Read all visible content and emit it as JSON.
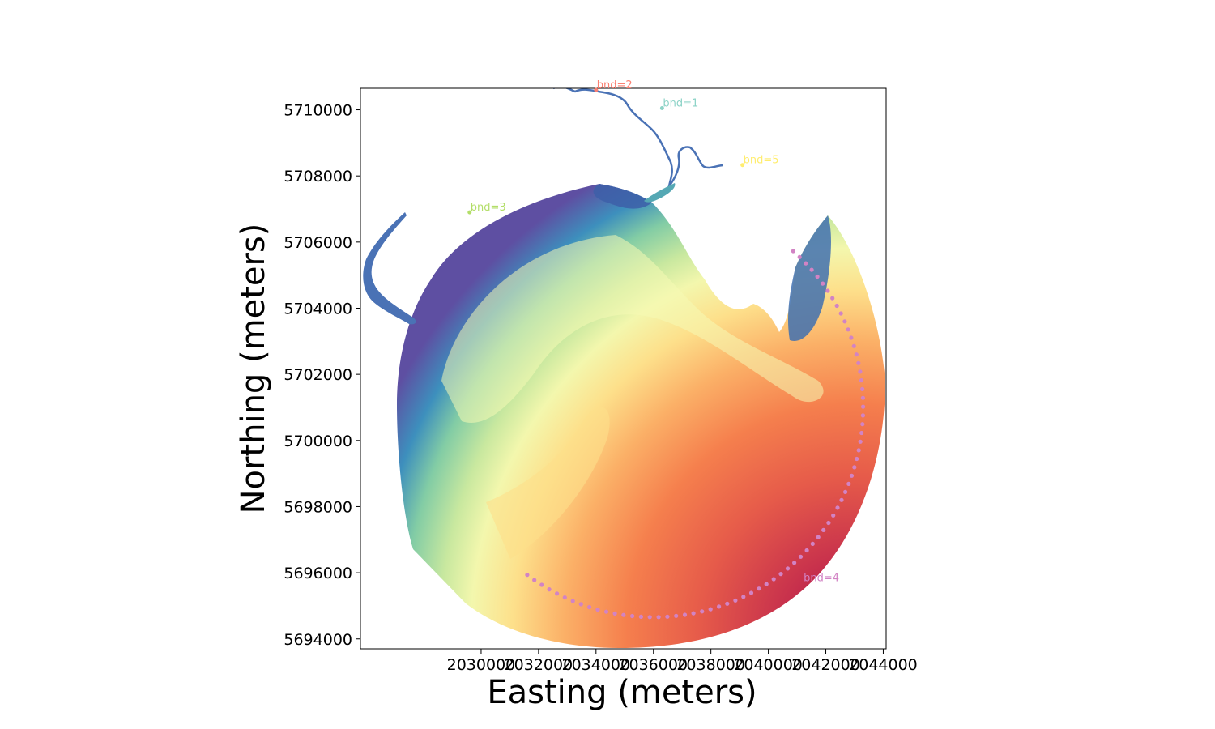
{
  "chart_data": {
    "type": "map",
    "title": "",
    "xlabel": "Easting (meters)",
    "ylabel": "Northing (meters)",
    "xlim": [
      2025800,
      2044100
    ],
    "ylim": [
      5693700,
      5710650
    ],
    "xticks": [
      2030000,
      2032000,
      2034000,
      2036000,
      2038000,
      2040000,
      2042000,
      2044000
    ],
    "yticks": [
      5694000,
      5696000,
      5698000,
      5700000,
      5702000,
      5704000,
      5706000,
      5708000,
      5710000
    ],
    "xtick_labels": [
      "2030000",
      "2032000",
      "2034000",
      "2036000",
      "2038000",
      "2040000",
      "2042000",
      "2044000"
    ],
    "ytick_labels": [
      "5694000",
      "5696000",
      "5698000",
      "5700000",
      "5702000",
      "5704000",
      "5706000",
      "5708000",
      "5710000"
    ],
    "colormap": "Spectral_r",
    "field": "mesh bathymetry (filled contours)",
    "boundaries": [
      {
        "label": "bnd=1",
        "x": 2036300,
        "y": 5710050,
        "color": "#8dd3c7"
      },
      {
        "label": "bnd=2",
        "x": 2034000,
        "y": 5710600,
        "color": "#fb8072"
      },
      {
        "label": "bnd=3",
        "x": 2029600,
        "y": 5706900,
        "color": "#b3de69"
      },
      {
        "label": "bnd=4",
        "x": 2041200,
        "y": 5695700,
        "color": "#d283c4"
      },
      {
        "label": "bnd=5",
        "x": 2039100,
        "y": 5708330,
        "color": "#ffed6f"
      }
    ],
    "open_boundary": {
      "label": "bnd=4",
      "center": [
        2036000,
        5701000
      ],
      "radius": 7300,
      "start_deg": 233,
      "end_deg": 410
    },
    "river_color": "#4a72b5"
  }
}
